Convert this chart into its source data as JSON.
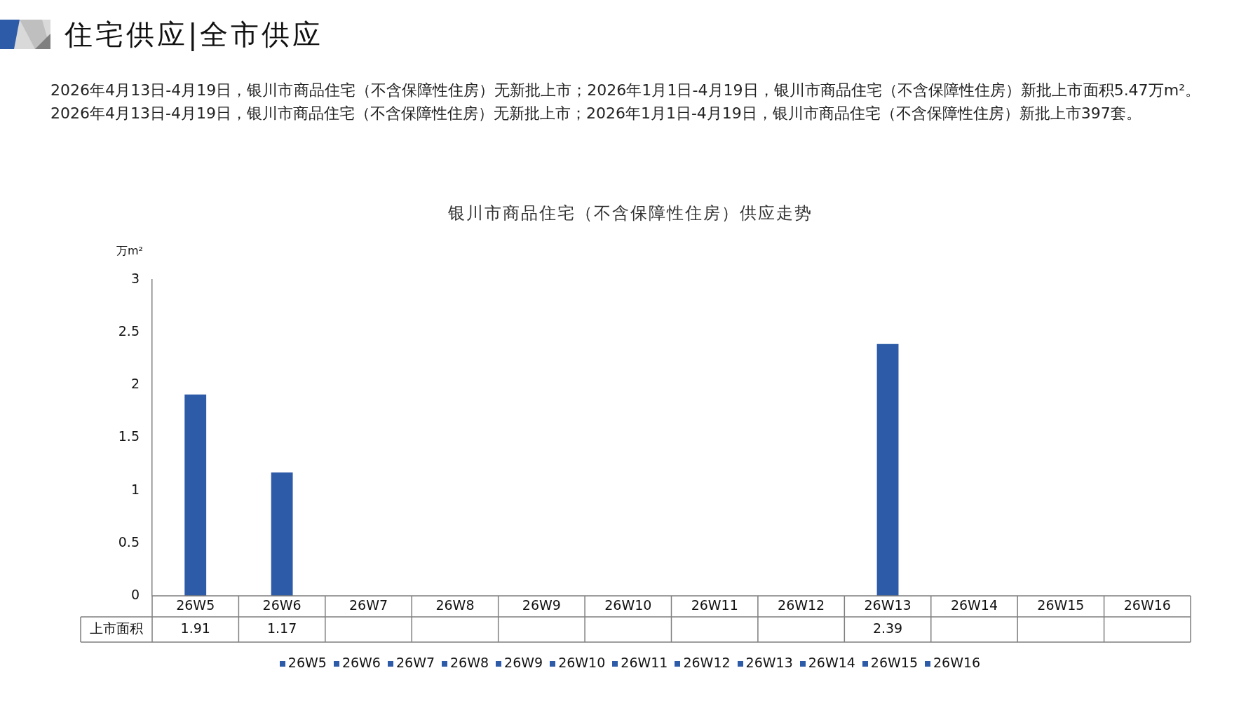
{
  "chart_data": {
    "type": "bar",
    "title": "银川市商品住宅（不含保障性住房）供应走势",
    "annotations": [
      "住宅供应|全市供应",
      "2026年4月13日-4月19日，银川市商品住宅（不含保障性住房）无新批上市；2026年1月1日-4月19日，银川市商品住宅（不含保障性住房）新批上市面积5.47万m²。2026年4月13日-4月19日，银川市商品住宅（不含保障性住房）无新批上市；2026年1月1日-4月19日，银川市商品住宅（不含保障性住房）新批上市397套。"
    ],
    "ylabel": "万m²",
    "categories": [
      "26W5",
      "26W6",
      "26W7",
      "26W8",
      "26W9",
      "26W10",
      "26W11",
      "26W12",
      "26W13",
      "26W14",
      "26W15",
      "26W16"
    ],
    "series": [
      {
        "name": "上市面积",
        "values": [
          1.91,
          1.17,
          null,
          null,
          null,
          null,
          null,
          null,
          2.39,
          null,
          null,
          null
        ],
        "colors": [
          "#2e5ba8",
          "#2e5ba8",
          "#2e5ba8",
          "#2e5ba8",
          "#2e5ba8",
          "#2e5ba8",
          "#2e5ba8",
          "#2e5ba8",
          "#2e5ba8",
          "#2e5ba8",
          "#2e5ba8",
          "#2e5ba8"
        ]
      }
    ],
    "ylim": [
      0,
      3
    ],
    "yticks": [
      0,
      0.5,
      1,
      1.5,
      2,
      2.5,
      3
    ],
    "grid": false,
    "data_labels": true,
    "legend": "bottom"
  }
}
